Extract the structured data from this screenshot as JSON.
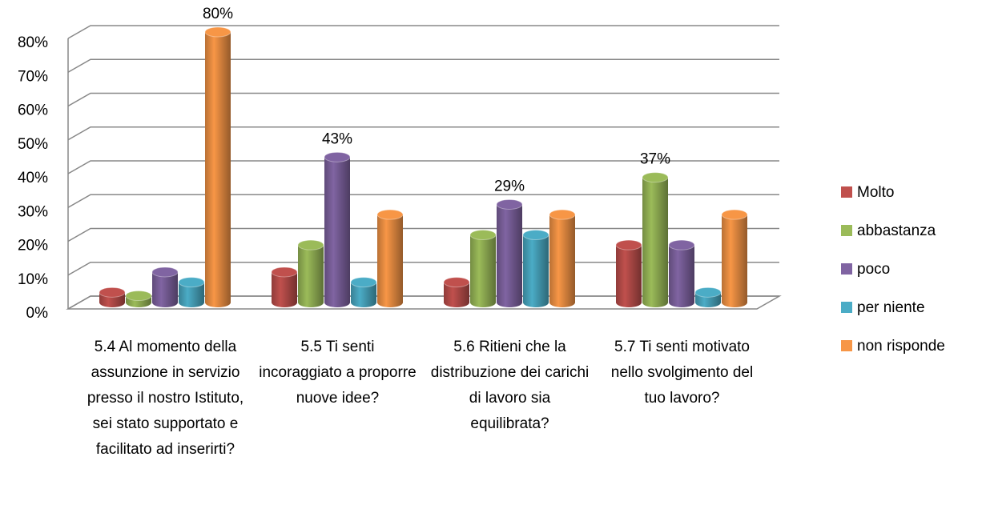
{
  "chart_data": {
    "type": "bar3d",
    "categories": [
      "5.4   Al momento della assunzione in servizio presso il nostro Istituto, sei stato supportato e facilitato ad inserirti?",
      "5.5  Ti senti incoraggiato a proporre nuove idee?",
      "5.6  Ritieni che la distribuzione dei carichi di lavoro sia equilibrata?",
      "5.7  Ti senti motivato nello svolgimento del tuo lavoro?"
    ],
    "series": [
      {
        "name": "Molto",
        "color": "#c0504d",
        "values": [
          3,
          9,
          6,
          17
        ]
      },
      {
        "name": "abbastanza",
        "color": "#9bbb59",
        "values": [
          2,
          17,
          20,
          37
        ],
        "value_labels": [
          null,
          null,
          null,
          "37%"
        ]
      },
      {
        "name": "poco",
        "color": "#8064a2",
        "values": [
          9,
          43,
          29,
          17
        ],
        "value_labels": [
          null,
          "43%",
          "29%",
          null
        ]
      },
      {
        "name": "per niente",
        "color": "#4bacc6",
        "values": [
          6,
          6,
          20,
          3
        ]
      },
      {
        "name": "non risponde",
        "color": "#f79646",
        "values": [
          80,
          26,
          26,
          26
        ],
        "value_labels": [
          "80%",
          null,
          null,
          null
        ]
      }
    ],
    "ylim": [
      0,
      80
    ],
    "yticks": [
      {
        "value": 0,
        "label": "0%"
      },
      {
        "value": 10,
        "label": "10%"
      },
      {
        "value": 20,
        "label": "20%"
      },
      {
        "value": 30,
        "label": "30%"
      },
      {
        "value": 40,
        "label": "40%"
      },
      {
        "value": 50,
        "label": "50%"
      },
      {
        "value": 60,
        "label": "60%"
      },
      {
        "value": 70,
        "label": "70%"
      },
      {
        "value": 80,
        "label": "80%"
      }
    ],
    "grid": true,
    "legend": "right"
  }
}
